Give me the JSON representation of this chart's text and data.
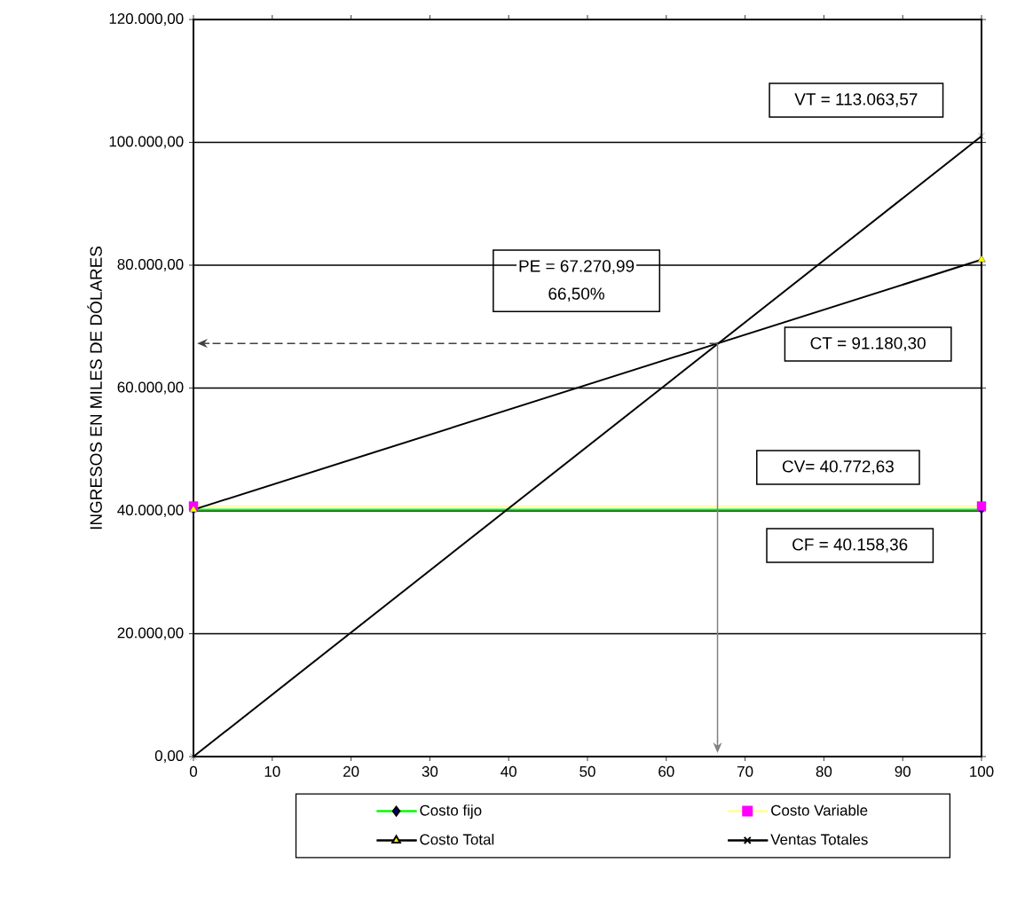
{
  "chart_data": {
    "type": "line",
    "ylabel": "INGRESOS EN MILES DE DÓLARES",
    "x": [
      0,
      100
    ],
    "series": [
      {
        "name": "Costo fijo",
        "color": "#00ff00",
        "colors": [
          "#000080",
          "#000080"
        ],
        "marker": "diamond",
        "values": [
          40200,
          40200
        ]
      },
      {
        "name": "Costo Variable",
        "color": "#ffff99",
        "colors": [
          "#ff00ff",
          "#ff00ff"
        ],
        "marker": "square",
        "values": [
          40800,
          40800
        ]
      },
      {
        "name": "Costo Total",
        "color": "#000000",
        "colors": [
          "#ffff00",
          "#ffff00"
        ],
        "marker": "triangle",
        "values": [
          40200,
          80900
        ]
      },
      {
        "name": "Ventas Totales",
        "color": "#000000",
        "colors": [
          "#000000",
          "#000000"
        ],
        "marker": "cross",
        "values": [
          0,
          101000
        ]
      }
    ],
    "xlim": [
      0,
      100
    ],
    "ylim": [
      0,
      120000
    ],
    "xticks": [
      0,
      10,
      20,
      30,
      40,
      50,
      60,
      70,
      80,
      90,
      100
    ],
    "yticks": [
      {
        "value": 0,
        "label": "0,00"
      },
      {
        "value": 20000,
        "label": "20.000,00"
      },
      {
        "value": 40000,
        "label": "40.000,00"
      },
      {
        "value": 60000,
        "label": "60.000,00"
      },
      {
        "value": 80000,
        "label": "80.000,00"
      },
      {
        "value": 100000,
        "label": "100.000,00"
      },
      {
        "value": 120000,
        "label": "120.000,00"
      }
    ],
    "annotations": [
      "VT = 113.063,57",
      "PE = 67.270,99",
      "66,50%",
      "CT =  91.180,30",
      "CV= 40.772,63",
      "CF = 40.158,36"
    ],
    "ref_lines": [
      {
        "axis": "y",
        "value": 67270,
        "line_style": "dashed",
        "color": "#404040"
      },
      {
        "axis": "x",
        "value": 66.5,
        "color": "#808080"
      }
    ],
    "grid": "y",
    "legend": "bottom"
  }
}
